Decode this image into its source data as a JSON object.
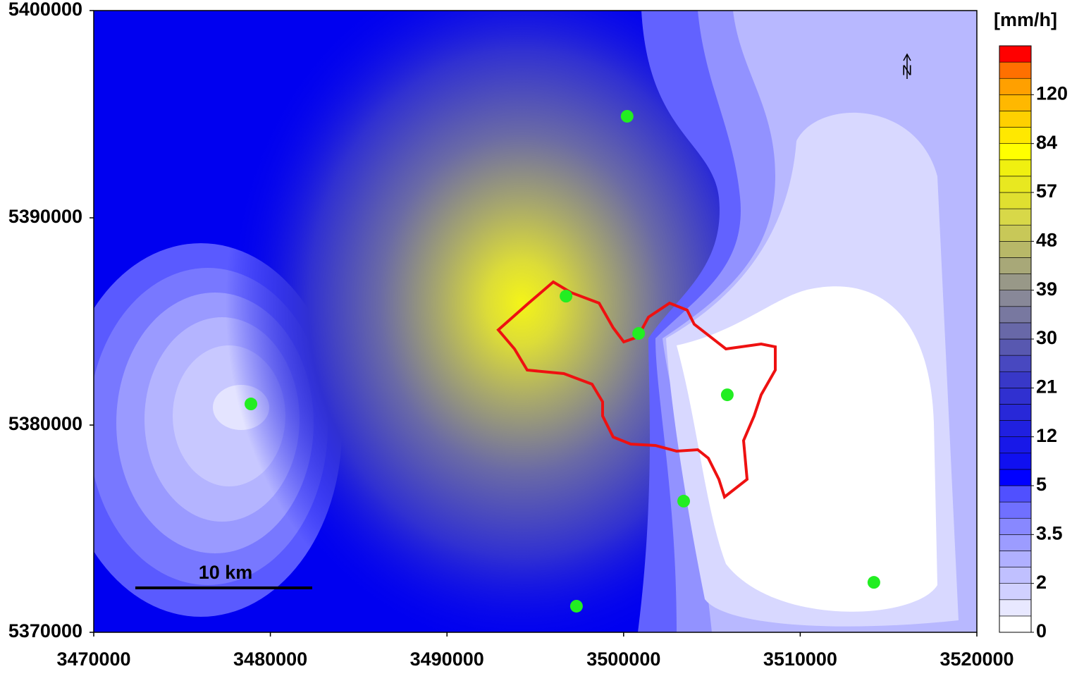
{
  "map": {
    "xlim": [
      3470000,
      3520000
    ],
    "ylim": [
      5370000,
      5400000
    ],
    "xticks": [
      3470000,
      3480000,
      3490000,
      3500000,
      3510000,
      3520000
    ],
    "yticks": [
      5370000,
      5380000,
      5390000,
      5400000
    ],
    "unit": "[mm/h]",
    "scale_bar": "10 km",
    "north": "N",
    "stations": {
      "color": "#22ee22",
      "x": [
        3500200,
        3496740,
        3500850,
        3478900,
        3505870,
        3503400,
        3497330,
        3514170
      ],
      "y": [
        5394900,
        5386220,
        5384420,
        5381020,
        5381460,
        5376330,
        5371260,
        5372410
      ]
    },
    "colorbar": {
      "labels": [
        0,
        2,
        3.5,
        5,
        12,
        21,
        30,
        39,
        48,
        57,
        84,
        120
      ],
      "colors": [
        "#ffffff",
        "#e8e8ff",
        "#d0d0ff",
        "#c0c0ff",
        "#b0b0ff",
        "#9c9cff",
        "#8888ff",
        "#7070ff",
        "#5050ff",
        "#0000ff",
        "#1010f0",
        "#1818e8",
        "#2020e0",
        "#2828d8",
        "#3030d0",
        "#3838c8",
        "#4848c0",
        "#5858b0",
        "#6868a8",
        "#7878a0",
        "#888898",
        "#989888",
        "#a8a878",
        "#b8b868",
        "#c8c858",
        "#d8d848",
        "#e0e030",
        "#e8e820",
        "#f0f010",
        "#ffff00",
        "#ffe800",
        "#ffd000",
        "#ffb800",
        "#ffa000",
        "#ff7000",
        "#ff0000"
      ]
    }
  }
}
